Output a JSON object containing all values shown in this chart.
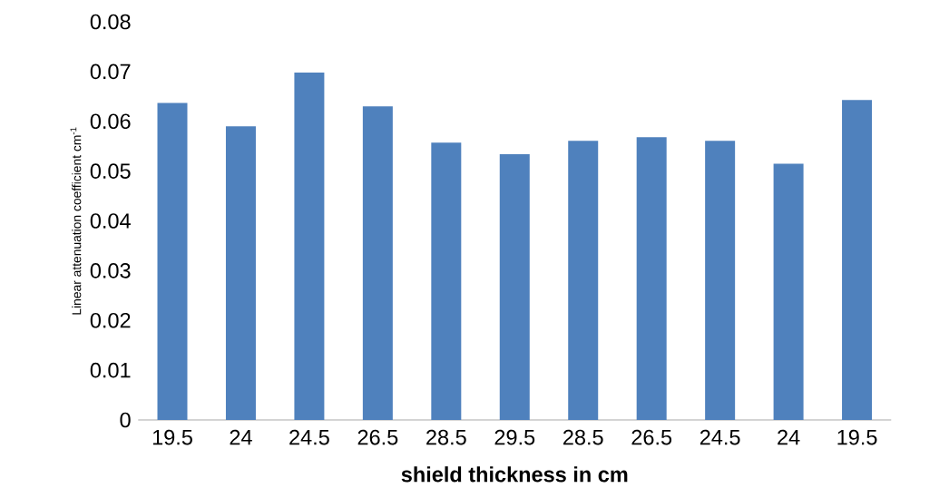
{
  "chart_data": {
    "type": "bar",
    "xlabel": "shield thickness in cm",
    "ylabel": "Linear attenuation coefficient cm$^{-1}$",
    "categories": [
      "19.5",
      "24",
      "24.5",
      "26.5",
      "28.5",
      "29.5",
      "28.5",
      "26.5",
      "24.5",
      "24",
      "19.5"
    ],
    "values": [
      0.0637,
      0.059,
      0.0698,
      0.063,
      0.0557,
      0.0534,
      0.0561,
      0.0568,
      0.0561,
      0.0515,
      0.0643
    ],
    "color": "#4f81bd",
    "ylim": [
      0,
      0.08
    ],
    "yticks": [
      0,
      0.01,
      0.02,
      0.03,
      0.04,
      0.05,
      0.06,
      0.07,
      0.08
    ]
  }
}
